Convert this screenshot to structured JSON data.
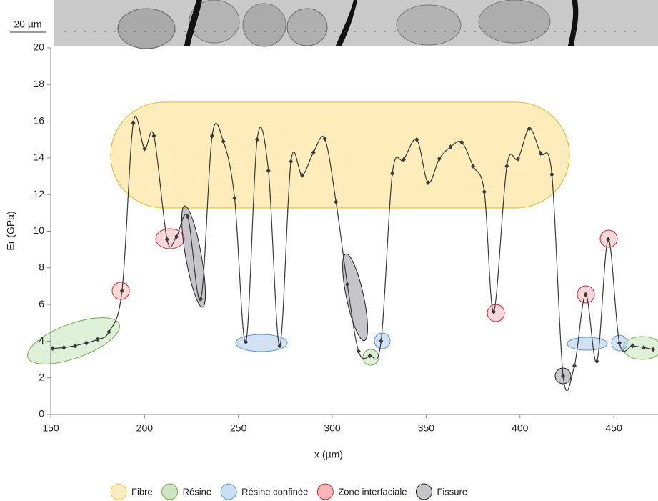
{
  "chart_data": {
    "type": "line",
    "scale_bar": "20 µm",
    "xlabel": "x (µm)",
    "ylabel": "Er (GPa)",
    "xlim": [
      150,
      473
    ],
    "ylim": [
      0,
      20
    ],
    "xticks": [
      150,
      200,
      250,
      300,
      350,
      400,
      450
    ],
    "yticks": [
      0,
      2,
      4,
      6,
      8,
      10,
      12,
      14,
      16,
      18,
      20
    ],
    "series": [
      {
        "color": "#3a3a3a",
        "x": [
          151,
          157,
          163,
          169,
          175,
          181,
          188,
          194,
          200,
          205,
          212,
          217,
          223,
          230,
          236,
          242,
          248,
          254,
          260,
          266,
          272,
          278,
          284,
          290,
          296,
          302,
          308,
          314,
          320,
          326,
          332,
          338,
          345,
          351,
          357,
          363,
          369,
          375,
          381,
          386,
          393,
          399,
          405,
          411,
          417,
          423,
          429,
          435,
          441,
          447,
          453,
          460,
          466,
          471
        ],
        "values": [
          3.6,
          3.65,
          3.75,
          3.9,
          4.1,
          4.5,
          6.75,
          15.9,
          14.5,
          15.2,
          9.55,
          9.7,
          10.8,
          6.3,
          15.2,
          14.9,
          11.8,
          3.95,
          15.0,
          13.3,
          3.75,
          13.8,
          13.05,
          14.3,
          15.05,
          11.6,
          7.1,
          3.45,
          3.2,
          4.0,
          13.15,
          13.9,
          15.0,
          12.65,
          13.95,
          14.6,
          14.85,
          13.55,
          12.15,
          5.6,
          13.55,
          13.95,
          15.6,
          14.25,
          13.1,
          2.1,
          2.65,
          6.55,
          2.9,
          9.55,
          3.9,
          3.75,
          3.65,
          3.55
        ]
      }
    ],
    "legend": [
      {
        "label": "Fibre",
        "color": "#f5c542"
      },
      {
        "label": "Résine",
        "color": "#70ad47"
      },
      {
        "label": "Résine confinée",
        "color": "#5b9bd5"
      },
      {
        "label": "Zone interfaciale",
        "color": "#e0262c"
      },
      {
        "label": "Fissure",
        "color": "#222222"
      }
    ]
  }
}
